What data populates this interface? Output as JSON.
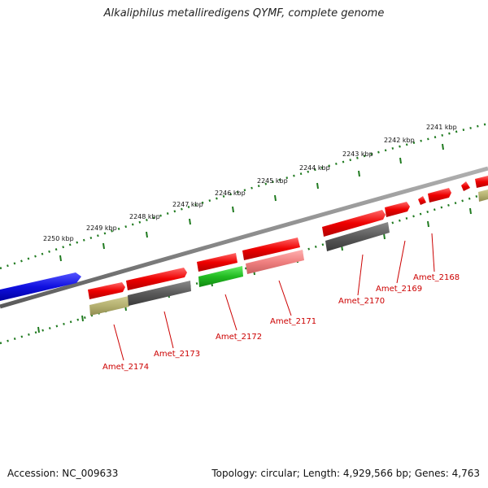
{
  "title": "Alkaliphilus metalliredigens QYMF, complete genome",
  "footer": {
    "accession": "Accession: NC_009633",
    "topology": "Topology: circular; Length: 4,929,566 bp; Genes: 4,763"
  },
  "scale_labels": [
    "2250 kbp",
    "2249 kbp",
    "2248 kbp",
    "2247 kbp",
    "2246 kbp",
    "2245 kbp",
    "2244 kbp",
    "2243 kbp",
    "2242 kbp",
    "2241 kbp"
  ],
  "gene_labels": [
    "Amet_2174",
    "Amet_2173",
    "Amet_2172",
    "Amet_2171",
    "Amet_2170",
    "Amet_2169",
    "Amet_2168"
  ],
  "colors": {
    "forward_cds": "#ee0000",
    "reverse_gray": "#555555",
    "reverse_olive": "#b4b070",
    "reverse_green": "#22bb22",
    "reverse_pink": "#f08080",
    "highlight": "#1010e0",
    "backbone": "#8c8c8c",
    "ticks": "#1f7a1f"
  }
}
